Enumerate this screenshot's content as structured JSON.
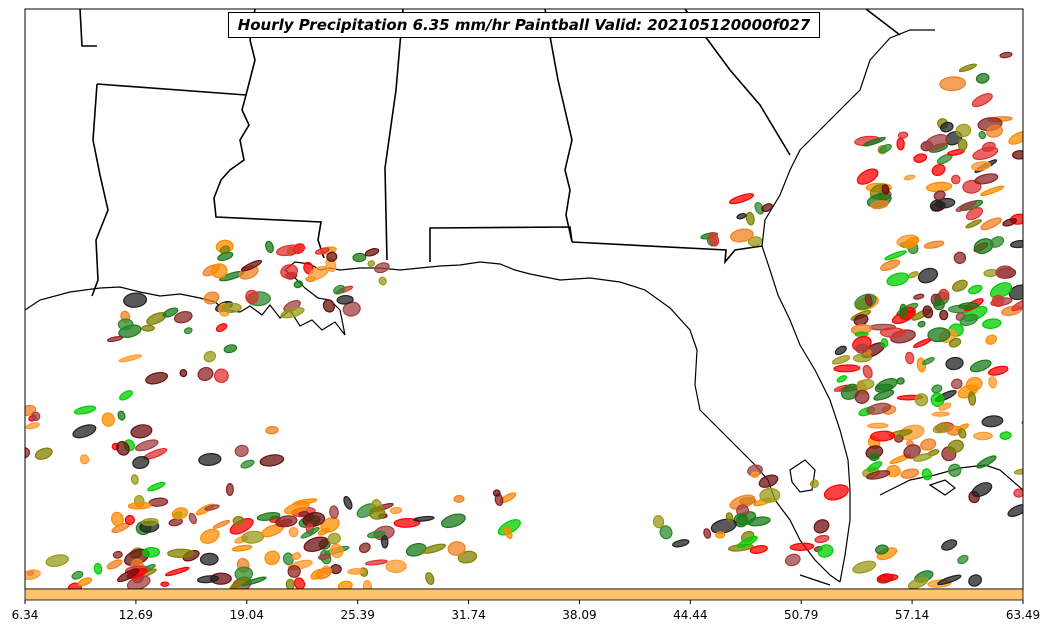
{
  "title": "Hourly Precipitation 6.35 mm/hr Paintball Valid: 202105120000f027",
  "colorbar": {
    "color": "#ffc469",
    "ticks": [
      "6.34",
      "12.69",
      "19.04",
      "25.39",
      "31.74",
      "38.09",
      "44.44",
      "50.79",
      "57.14",
      "63.49"
    ]
  },
  "member_colors": [
    "#6b0f0f",
    "#8b2525",
    "#ff8c00",
    "#ff9a2e",
    "#ff0000",
    "#e03030",
    "#00cc00",
    "#1a7a1a",
    "#808000",
    "#9a9a1a",
    "#222222",
    "#a04040",
    "#2e8b2e",
    "#f08020"
  ],
  "map": {
    "region": "Southeastern United States and Gulf of Mexico",
    "coastline_color": "#000000",
    "background": "#ffffff"
  }
}
